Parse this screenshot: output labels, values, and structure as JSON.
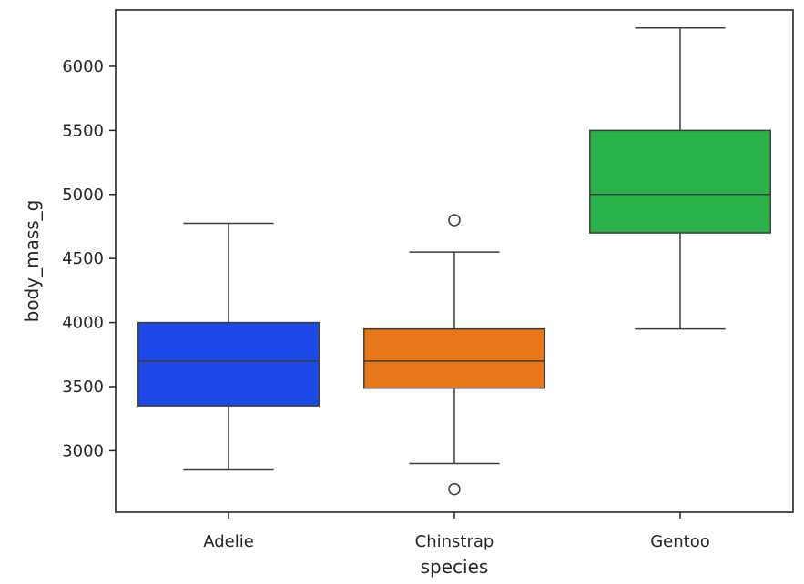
{
  "chart_data": {
    "type": "box",
    "xlabel": "species",
    "ylabel": "body_mass_g",
    "ylim": [
      2520,
      6440
    ],
    "yticks": [
      3000,
      3500,
      4000,
      4500,
      5000,
      5500,
      6000
    ],
    "yticks_text": [
      "3000",
      "3500",
      "4000",
      "4500",
      "5000",
      "5500",
      "6000"
    ],
    "grid": false,
    "legend": "none",
    "categories": [
      "Adelie",
      "Chinstrap",
      "Gentoo"
    ],
    "series": [
      {
        "whisker_low": 2850,
        "q1": 3350,
        "median": 3700,
        "q3": 4000,
        "whisker_high": 4775,
        "outliers": [],
        "color": "#1f48e8"
      },
      {
        "whisker_low": 2900,
        "q1": 3488,
        "median": 3700,
        "q3": 3950,
        "whisker_high": 4550,
        "outliers": [
          2700,
          4800
        ],
        "color": "#e8771a"
      },
      {
        "whisker_low": 3950,
        "q1": 4700,
        "median": 5000,
        "q3": 5500,
        "whisker_high": 6300,
        "outliers": [],
        "color": "#2ab24a"
      }
    ]
  }
}
